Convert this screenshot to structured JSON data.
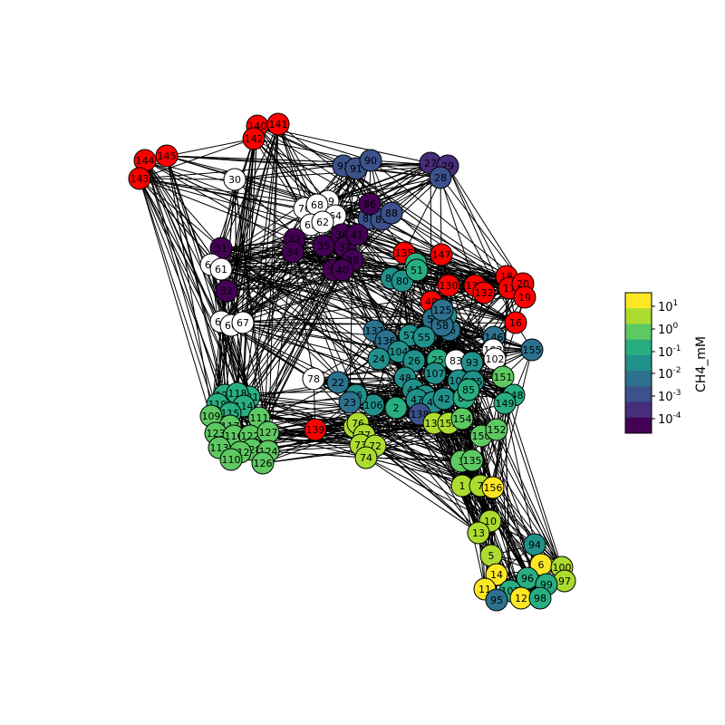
{
  "colorbar": {
    "label": "CH4_mM",
    "ticks": [
      {
        "base": "10",
        "exp": "1"
      },
      {
        "base": "10",
        "exp": "0"
      },
      {
        "base": "10",
        "exp": "-1"
      },
      {
        "base": "10",
        "exp": "-2"
      },
      {
        "base": "10",
        "exp": "-3"
      },
      {
        "base": "10",
        "exp": "-4"
      }
    ],
    "colors": [
      "#440154",
      "#472d7b",
      "#3b528b",
      "#2c728e",
      "#21918c",
      "#28ae80",
      "#5ec962",
      "#addc30",
      "#fde725"
    ]
  },
  "palette": {
    "red": "#ff0000",
    "white": "#ffffff",
    "c0": "#440154",
    "c1": "#472d7b",
    "c2": "#3b528b",
    "c3": "#2c728e",
    "c4": "#21918c",
    "c5": "#28ae80",
    "c6": "#5ec962",
    "c7": "#addc30",
    "c8": "#fde725"
  },
  "nodes": [
    {
      "id": "140",
      "c": "red"
    },
    {
      "id": "141",
      "c": "red"
    },
    {
      "id": "142",
      "c": "red"
    },
    {
      "id": "144",
      "c": "red"
    },
    {
      "id": "145",
      "c": "red"
    },
    {
      "id": "143",
      "c": "red"
    },
    {
      "id": "30",
      "c": "white"
    },
    {
      "id": "92",
      "c": "c2"
    },
    {
      "id": "91",
      "c": "c2"
    },
    {
      "id": "90",
      "c": "c2"
    },
    {
      "id": "27",
      "c": "c1"
    },
    {
      "id": "29",
      "c": "c1"
    },
    {
      "id": "28",
      "c": "c2"
    },
    {
      "id": "69",
      "c": "white"
    },
    {
      "id": "70",
      "c": "white"
    },
    {
      "id": "68",
      "c": "white"
    },
    {
      "id": "64",
      "c": "white"
    },
    {
      "id": "63",
      "c": "white"
    },
    {
      "id": "62",
      "c": "white"
    },
    {
      "id": "87",
      "c": "c2"
    },
    {
      "id": "89",
      "c": "c2"
    },
    {
      "id": "88",
      "c": "c2"
    },
    {
      "id": "86",
      "c": "c0"
    },
    {
      "id": "31",
      "c": "c0"
    },
    {
      "id": "60",
      "c": "white"
    },
    {
      "id": "61",
      "c": "white"
    },
    {
      "id": "32",
      "c": "c0"
    },
    {
      "id": "33",
      "c": "c0"
    },
    {
      "id": "34",
      "c": "c0"
    },
    {
      "id": "35",
      "c": "c0"
    },
    {
      "id": "36",
      "c": "c0"
    },
    {
      "id": "37",
      "c": "c0"
    },
    {
      "id": "38",
      "c": "c0"
    },
    {
      "id": "39",
      "c": "c0"
    },
    {
      "id": "40",
      "c": "c0"
    },
    {
      "id": "41",
      "c": "c0"
    },
    {
      "id": "135",
      "c": "red"
    },
    {
      "id": "147",
      "c": "red"
    },
    {
      "id": "81",
      "c": "c4"
    },
    {
      "id": "80",
      "c": "c4"
    },
    {
      "id": "79",
      "c": "c5"
    },
    {
      "id": "51",
      "c": "c5"
    },
    {
      "id": "130",
      "c": "red"
    },
    {
      "id": "131",
      "c": "red"
    },
    {
      "id": "132",
      "c": "red"
    },
    {
      "id": "18",
      "c": "red"
    },
    {
      "id": "17",
      "c": "red"
    },
    {
      "id": "20",
      "c": "red"
    },
    {
      "id": "19",
      "c": "red"
    },
    {
      "id": "48",
      "c": "red"
    },
    {
      "id": "16",
      "c": "red"
    },
    {
      "id": "65",
      "c": "white"
    },
    {
      "id": "66",
      "c": "white"
    },
    {
      "id": "67",
      "c": "white"
    },
    {
      "id": "137",
      "c": "c3"
    },
    {
      "id": "136",
      "c": "c3"
    },
    {
      "id": "57",
      "c": "c4"
    },
    {
      "id": "56",
      "c": "c3"
    },
    {
      "id": "53",
      "c": "c3"
    },
    {
      "id": "54",
      "c": "c4"
    },
    {
      "id": "55",
      "c": "c4"
    },
    {
      "id": "58",
      "c": "c3"
    },
    {
      "id": "125",
      "c": "c3"
    },
    {
      "id": "146",
      "c": "c3"
    },
    {
      "id": "155",
      "c": "c3"
    },
    {
      "id": "103",
      "c": "white"
    },
    {
      "id": "102",
      "c": "white"
    },
    {
      "id": "104",
      "c": "c4"
    },
    {
      "id": "24",
      "c": "c4"
    },
    {
      "id": "26",
      "c": "c4"
    },
    {
      "id": "25",
      "c": "c5"
    },
    {
      "id": "83",
      "c": "white"
    },
    {
      "id": "93",
      "c": "c4"
    },
    {
      "id": "107",
      "c": "c4"
    },
    {
      "id": "108",
      "c": "c4"
    },
    {
      "id": "105",
      "c": "c4"
    },
    {
      "id": "106",
      "c": "c4"
    },
    {
      "id": "151",
      "c": "c6"
    },
    {
      "id": "148",
      "c": "c5"
    },
    {
      "id": "149",
      "c": "c5"
    },
    {
      "id": "78",
      "c": "white"
    },
    {
      "id": "22",
      "c": "c3"
    },
    {
      "id": "46",
      "c": "c4"
    },
    {
      "id": "23",
      "c": "c3"
    },
    {
      "id": "48b",
      "label": "48",
      "c": "c4"
    },
    {
      "id": "44",
      "c": "c4"
    },
    {
      "id": "45",
      "c": "c4"
    },
    {
      "id": "47",
      "c": "c4"
    },
    {
      "id": "43",
      "c": "c4"
    },
    {
      "id": "42",
      "c": "c4"
    },
    {
      "id": "84",
      "c": "c5"
    },
    {
      "id": "85",
      "c": "c5"
    },
    {
      "id": "2",
      "c": "c5"
    },
    {
      "id": "138",
      "c": "c2"
    },
    {
      "id": "134",
      "c": "c7"
    },
    {
      "id": "153",
      "c": "c7"
    },
    {
      "id": "154",
      "c": "c6"
    },
    {
      "id": "150",
      "c": "c6"
    },
    {
      "id": "152",
      "c": "c6"
    },
    {
      "id": "120",
      "c": "c5"
    },
    {
      "id": "119",
      "c": "c5"
    },
    {
      "id": "121",
      "c": "c5"
    },
    {
      "id": "118",
      "c": "c5"
    },
    {
      "id": "114",
      "c": "c5"
    },
    {
      "id": "115",
      "c": "c5"
    },
    {
      "id": "109",
      "c": "c6"
    },
    {
      "id": "117",
      "c": "c6"
    },
    {
      "id": "111",
      "c": "c6"
    },
    {
      "id": "123",
      "c": "c6"
    },
    {
      "id": "116",
      "c": "c6"
    },
    {
      "id": "122",
      "c": "c6"
    },
    {
      "id": "127",
      "c": "c6"
    },
    {
      "id": "113",
      "c": "c6"
    },
    {
      "id": "128",
      "c": "c6"
    },
    {
      "id": "112",
      "c": "c6"
    },
    {
      "id": "124",
      "c": "c6"
    },
    {
      "id": "126",
      "c": "c6"
    },
    {
      "id": "110",
      "c": "c6"
    },
    {
      "id": "139",
      "c": "red"
    },
    {
      "id": "75",
      "c": "c7"
    },
    {
      "id": "76",
      "c": "c7"
    },
    {
      "id": "77",
      "c": "c7"
    },
    {
      "id": "73",
      "c": "c7"
    },
    {
      "id": "72",
      "c": "c7"
    },
    {
      "id": "74",
      "c": "c7"
    },
    {
      "id": "3",
      "c": "c6"
    },
    {
      "id": "135b",
      "label": "135",
      "c": "c6"
    },
    {
      "id": "1",
      "c": "c7"
    },
    {
      "id": "7",
      "c": "c7"
    },
    {
      "id": "156",
      "c": "c8"
    },
    {
      "id": "10",
      "c": "c7"
    },
    {
      "id": "13",
      "c": "c7"
    },
    {
      "id": "94",
      "c": "c4"
    },
    {
      "id": "5",
      "c": "c7"
    },
    {
      "id": "6",
      "c": "c8"
    },
    {
      "id": "100",
      "c": "c7"
    },
    {
      "id": "14",
      "c": "c8"
    },
    {
      "id": "96",
      "c": "c5"
    },
    {
      "id": "97",
      "c": "c7"
    },
    {
      "id": "99",
      "c": "c5"
    },
    {
      "id": "11",
      "c": "c8"
    },
    {
      "id": "101",
      "c": "c5"
    },
    {
      "id": "95",
      "c": "c3"
    },
    {
      "id": "12",
      "c": "c8"
    },
    {
      "id": "98",
      "c": "c5"
    }
  ]
}
